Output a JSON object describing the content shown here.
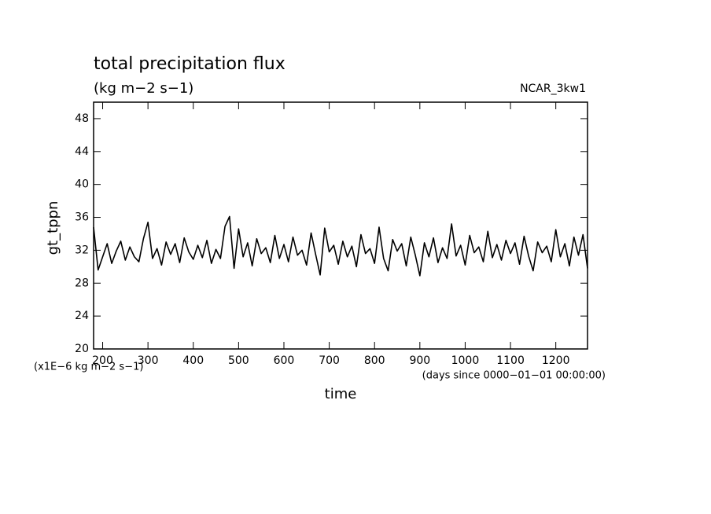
{
  "chart_data": {
    "type": "line",
    "title": "total precipitation flux",
    "subtitle": "(kg m−2 s−1)",
    "annotations": {
      "run": "NCAR_3kw1",
      "y_units": "(x1E−6 kg m−2 s−1)",
      "x_units": "(days since 0000−01−01 00:00:00)"
    },
    "xlabel": "time",
    "ylabel": "gt_tppn",
    "xlim": [
      180,
      1270
    ],
    "ylim": [
      20,
      50
    ],
    "xticks": [
      200,
      300,
      400,
      500,
      600,
      700,
      800,
      900,
      1000,
      1100,
      1200
    ],
    "yticks": [
      20,
      24,
      28,
      32,
      36,
      40,
      44,
      48
    ],
    "x": [
      180,
      190,
      200,
      210,
      220,
      230,
      240,
      250,
      260,
      270,
      280,
      290,
      300,
      310,
      320,
      330,
      340,
      350,
      360,
      370,
      380,
      390,
      400,
      410,
      420,
      430,
      440,
      450,
      460,
      470,
      480,
      490,
      500,
      510,
      520,
      530,
      540,
      550,
      560,
      570,
      580,
      590,
      600,
      610,
      620,
      630,
      640,
      650,
      660,
      670,
      680,
      690,
      700,
      710,
      720,
      730,
      740,
      750,
      760,
      770,
      780,
      790,
      800,
      810,
      820,
      830,
      840,
      850,
      860,
      870,
      880,
      890,
      900,
      910,
      920,
      930,
      940,
      950,
      960,
      970,
      980,
      990,
      1000,
      1010,
      1020,
      1030,
      1040,
      1050,
      1060,
      1070,
      1080,
      1090,
      1100,
      1110,
      1120,
      1130,
      1140,
      1150,
      1160,
      1170,
      1180,
      1190,
      1200,
      1210,
      1220,
      1230,
      1240,
      1250,
      1260,
      1270
    ],
    "series": [
      {
        "color": "#000000",
        "values": [
          34.8,
          29.6,
          31.2,
          32.8,
          30.4,
          31.9,
          33.1,
          30.8,
          32.4,
          31.2,
          30.6,
          33.4,
          35.4,
          31.0,
          32.2,
          30.2,
          33.0,
          31.5,
          32.8,
          30.5,
          33.5,
          31.8,
          30.9,
          32.6,
          31.1,
          33.2,
          30.4,
          32.1,
          31.0,
          34.9,
          36.1,
          29.8,
          34.6,
          31.2,
          32.9,
          30.1,
          33.4,
          31.6,
          32.3,
          30.5,
          33.8,
          31.0,
          32.7,
          30.6,
          33.6,
          31.4,
          32.0,
          30.2,
          34.1,
          31.5,
          29.0,
          34.7,
          31.8,
          32.6,
          30.3,
          33.1,
          31.2,
          32.5,
          30.0,
          33.9,
          31.6,
          32.2,
          30.4,
          34.8,
          31.0,
          29.5,
          33.3,
          31.9,
          32.8,
          30.1,
          33.6,
          31.4,
          28.9,
          32.9,
          31.2,
          33.5,
          30.5,
          32.3,
          31.0,
          35.2,
          31.3,
          32.6,
          30.2,
          33.8,
          31.7,
          32.4,
          30.6,
          34.3,
          31.1,
          32.7,
          30.8,
          33.2,
          31.6,
          32.9,
          30.3,
          33.7,
          31.3,
          29.5,
          33.0,
          31.7,
          32.5,
          30.6,
          34.5,
          31.2,
          32.8,
          30.1,
          33.6,
          31.4,
          33.9,
          29.8
        ]
      }
    ]
  }
}
